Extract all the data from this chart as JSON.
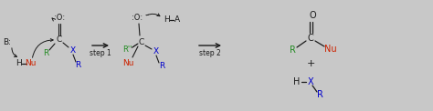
{
  "bg_color": "#c8c8c8",
  "black": "#1a1a1a",
  "green": "#228B22",
  "red": "#cc2200",
  "blue": "#0000cc",
  "figsize": [
    4.74,
    1.22
  ],
  "dpi": 100,
  "xlim": [
    0,
    47.4
  ],
  "ylim": [
    0,
    12.2
  ]
}
